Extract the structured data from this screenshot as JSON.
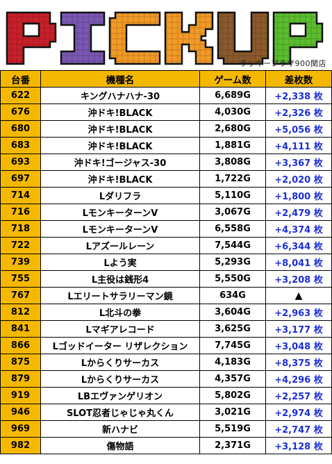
{
  "header": {
    "title_letters": [
      "P",
      "I",
      "C",
      "K",
      "U",
      "P"
    ],
    "store_label": "ラッキープラザ900関店",
    "colors": {
      "P1": "#c8202a",
      "I": "#7a58b4",
      "C": "#f29a26",
      "K": "#f29a26",
      "U": "#8b5a2b",
      "P2": "#5bbd2e"
    }
  },
  "table": {
    "columns": [
      "台番",
      "機種名",
      "ゲーム数",
      "差枚数"
    ],
    "rows": [
      {
        "no": "622",
        "name": "キングハナハナ-30",
        "games": "6,689G",
        "diff": "+2,338 枚"
      },
      {
        "no": "676",
        "name": "沖ドキ!BLACK",
        "games": "4,030G",
        "diff": "+2,326 枚"
      },
      {
        "no": "680",
        "name": "沖ドキ!BLACK",
        "games": "2,680G",
        "diff": "+5,056 枚"
      },
      {
        "no": "683",
        "name": "沖ドキ!BLACK",
        "games": "1,881G",
        "diff": "+4,111 枚"
      },
      {
        "no": "693",
        "name": "沖ドキ!ゴージャス-30",
        "games": "3,808G",
        "diff": "+3,367 枚"
      },
      {
        "no": "697",
        "name": "沖ドキ!BLACK",
        "games": "1,722G",
        "diff": "+2,020 枚"
      },
      {
        "no": "714",
        "name": "Lダリフラ",
        "games": "5,110G",
        "diff": "+1,800 枚"
      },
      {
        "no": "716",
        "name": "LモンキーターンV",
        "games": "3,067G",
        "diff": "+2,479 枚"
      },
      {
        "no": "718",
        "name": "LモンキーターンV",
        "games": "6,558G",
        "diff": "+4,374 枚"
      },
      {
        "no": "722",
        "name": "Lアズールレーン",
        "games": "7,544G",
        "diff": "+6,344 枚"
      },
      {
        "no": "739",
        "name": "Lよう実",
        "games": "5,293G",
        "diff": "+8,041 枚"
      },
      {
        "no": "755",
        "name": "L主役は銭形4",
        "games": "5,550G",
        "diff": "+3,208 枚"
      },
      {
        "no": "767",
        "name": "Lエリートサラリーマン鏡",
        "games": "634G",
        "diff": "▲"
      },
      {
        "no": "812",
        "name": "L北斗の拳",
        "games": "3,604G",
        "diff": "+2,963 枚"
      },
      {
        "no": "841",
        "name": "Lマギアレコード",
        "games": "3,625G",
        "diff": "+3,177 枚"
      },
      {
        "no": "866",
        "name": "Lゴッドイーター リザレクション",
        "games": "7,745G",
        "diff": "+3,048 枚"
      },
      {
        "no": "875",
        "name": "Lからくりサーカス",
        "games": "4,183G",
        "diff": "+8,375 枚"
      },
      {
        "no": "879",
        "name": "Lからくりサーカス",
        "games": "4,357G",
        "diff": "+4,296 枚"
      },
      {
        "no": "919",
        "name": "LBエヴァンゲリオン",
        "games": "5,802G",
        "diff": "+2,257 枚"
      },
      {
        "no": "946",
        "name": "SLOT忍者じゃじゃ丸くん",
        "games": "3,021G",
        "diff": "+2,974 枚"
      },
      {
        "no": "969",
        "name": "新ハナビ",
        "games": "5,519G",
        "diff": "+2,747 枚"
      },
      {
        "no": "982",
        "name": "傷物語",
        "games": "2,371G",
        "diff": "+3,128 枚"
      }
    ]
  }
}
